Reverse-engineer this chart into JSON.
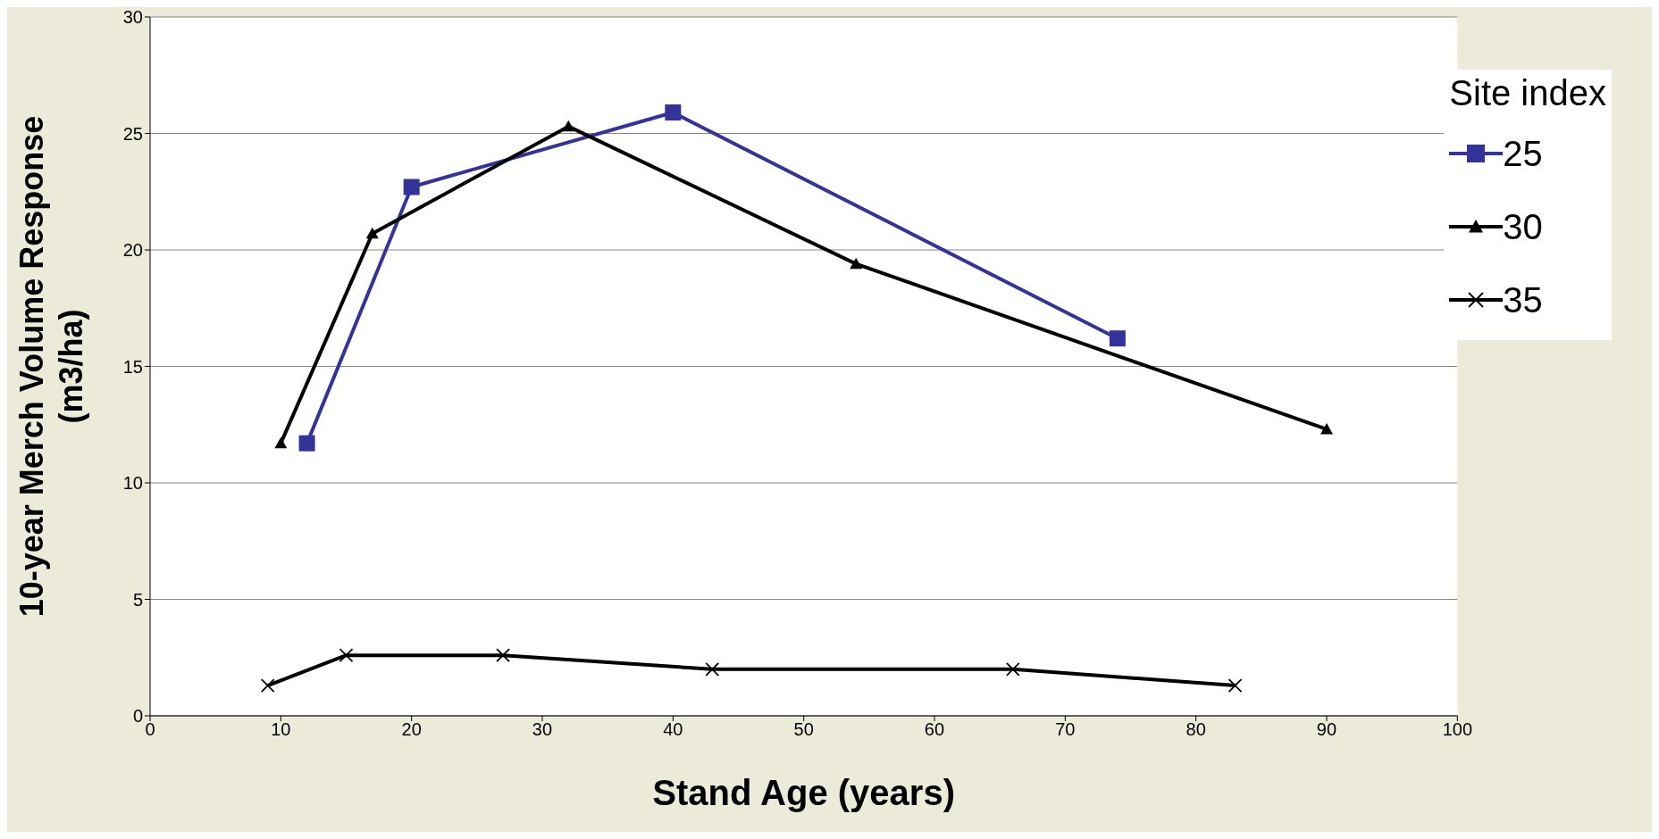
{
  "chart_data": {
    "type": "line",
    "xlabel": "Stand Age (years)",
    "ylabel": "10-year Merch Volume Response (m3/ha)",
    "legend_title": "Site index",
    "xlim": [
      0,
      100
    ],
    "xticks": [
      0,
      10,
      20,
      30,
      40,
      50,
      60,
      70,
      80,
      90,
      100
    ],
    "ylim": [
      0,
      30
    ],
    "yticks": [
      0,
      5,
      10,
      15,
      20,
      25,
      30
    ],
    "grid": "y",
    "legend": "top right",
    "series": [
      {
        "name": "25",
        "color": "#333399",
        "marker": "square",
        "x": [
          12,
          20,
          40,
          74
        ],
        "values": [
          11.7,
          22.7,
          25.9,
          16.2
        ]
      },
      {
        "name": "30",
        "color": "#000000",
        "marker": "triangle",
        "x": [
          10,
          17,
          32,
          54,
          90
        ],
        "values": [
          11.7,
          20.7,
          25.3,
          19.4,
          12.3
        ]
      },
      {
        "name": "35",
        "color": "#000000",
        "marker": "cross",
        "x": [
          9,
          15,
          27,
          43,
          66,
          83
        ],
        "values": [
          1.3,
          2.6,
          2.6,
          2.0,
          2.0,
          1.3
        ]
      }
    ]
  }
}
